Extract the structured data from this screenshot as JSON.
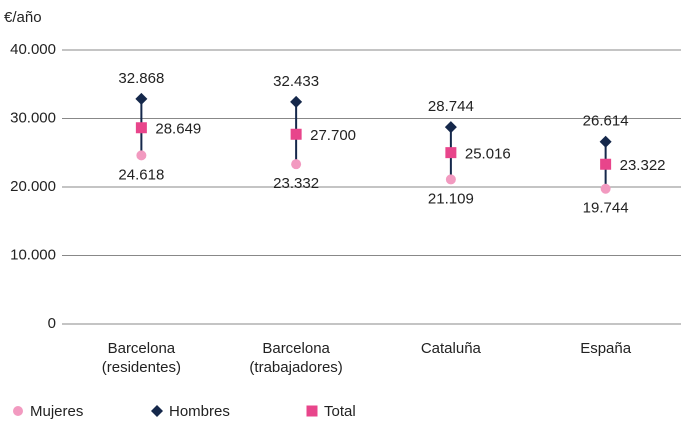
{
  "chart_data": {
    "type": "dotrange",
    "y_label": "€/año",
    "categories": [
      "Barcelona (residentes)",
      "Barcelona (trabajadores)",
      "Cataluña",
      "España"
    ],
    "series": [
      {
        "name": "Mujeres",
        "color": "#f29ac0",
        "marker": "circle",
        "values": [
          24618,
          23332,
          21109,
          19744
        ],
        "value_labels": [
          "24.618",
          "23.332",
          "21.109",
          "19.744"
        ]
      },
      {
        "name": "Hombres",
        "color": "#15284b",
        "marker": "diamond",
        "values": [
          32868,
          32433,
          28744,
          26614
        ],
        "value_labels": [
          "32.868",
          "32.433",
          "28.744",
          "26.614"
        ]
      },
      {
        "name": "Total",
        "color": "#e8458b",
        "marker": "square",
        "values": [
          28649,
          27700,
          25016,
          23322
        ],
        "value_labels": [
          "28.649",
          "27.700",
          "25.016",
          "23.322"
        ]
      }
    ],
    "ylim": [
      0,
      40000
    ],
    "yticks": [
      0,
      {
        "value": 10000,
        "label": "10.000"
      },
      {
        "value": 20000,
        "label": "20.000"
      },
      {
        "value": 30000,
        "label": "30.000"
      },
      {
        "value": 40000,
        "label": "40.000"
      }
    ],
    "grid": true,
    "legend": "bottom"
  }
}
